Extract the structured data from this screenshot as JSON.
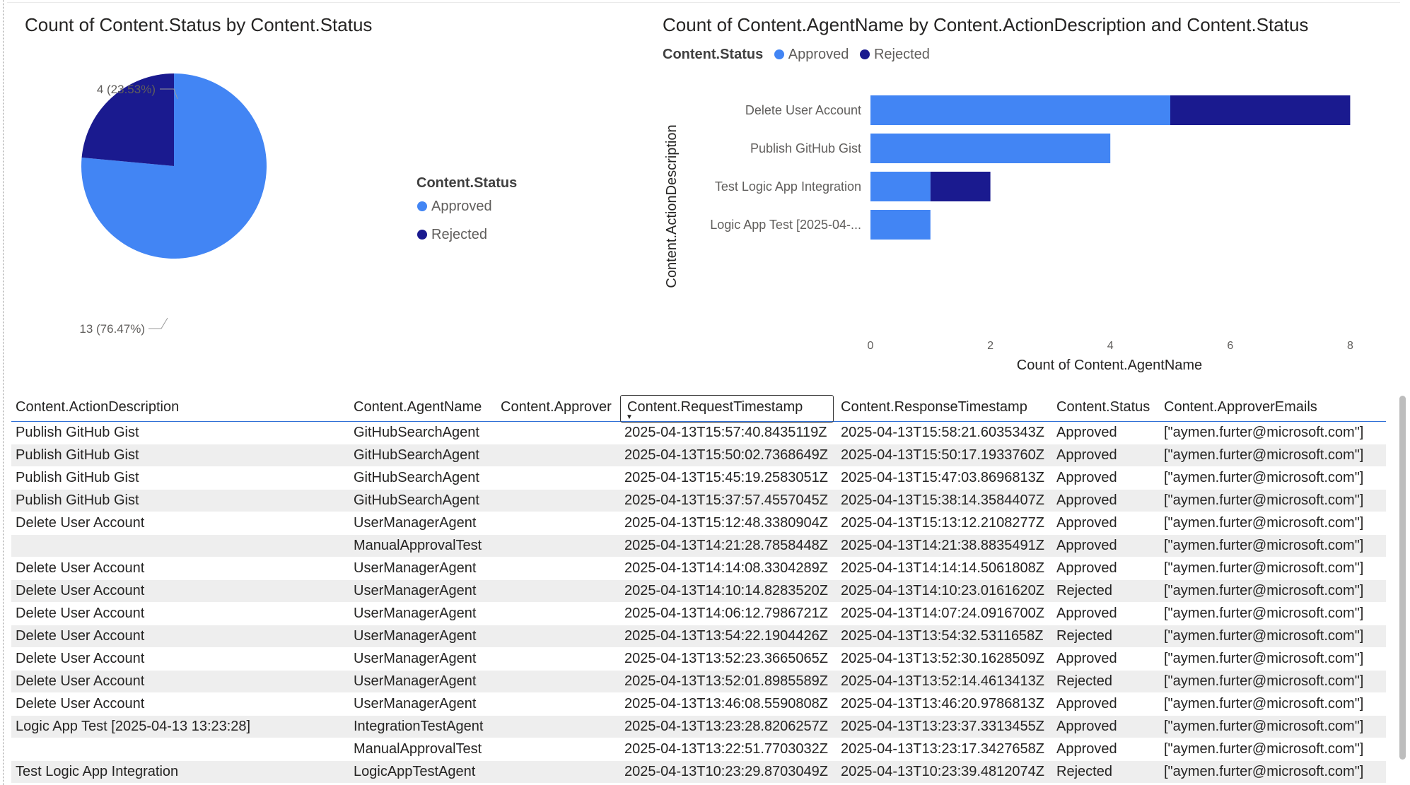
{
  "pie_visual": {
    "title": "Count of Content.Status by Content.Status",
    "legend_title": "Content.Status",
    "legend": [
      {
        "label": "Approved",
        "color": "#4285f4"
      },
      {
        "label": "Rejected",
        "color": "#1a1a8f"
      }
    ],
    "labels": {
      "rejected": "4 (23.53%)",
      "approved": "13 (76.47%)"
    }
  },
  "bar_visual": {
    "title": "Count of Content.AgentName by Content.ActionDescription and Content.Status",
    "legend_title": "Content.Status",
    "legend": [
      {
        "label": "Approved",
        "color": "#4285f4"
      },
      {
        "label": "Rejected",
        "color": "#1a1a8f"
      }
    ],
    "y_axis_title": "Content.ActionDescription",
    "x_axis_title": "Count of Content.AgentName"
  },
  "chart_data": [
    {
      "type": "pie",
      "title": "Count of Content.Status by Content.Status",
      "categories": [
        "Approved",
        "Rejected"
      ],
      "values": [
        13,
        4
      ],
      "labels": [
        "13 (76.47%)",
        "4 (23.53%)"
      ],
      "colors": [
        "#4285f4",
        "#1a1a8f"
      ],
      "legend": "right"
    },
    {
      "type": "bar",
      "orientation": "horizontal",
      "stacked": true,
      "title": "Count of Content.AgentName by Content.ActionDescription and Content.Status",
      "categories": [
        "Delete User Account",
        "Publish GitHub Gist",
        "Test Logic App Integration",
        "Logic App Test [2025-04-..."
      ],
      "series": [
        {
          "name": "Approved",
          "values": [
            5,
            4,
            1,
            1
          ],
          "color": "#4285f4"
        },
        {
          "name": "Rejected",
          "values": [
            3,
            0,
            1,
            0
          ],
          "color": "#1a1a8f"
        }
      ],
      "xlabel": "Count of Content.AgentName",
      "ylabel": "Content.ActionDescription",
      "xlim": [
        0,
        8
      ],
      "xticks": [
        0,
        2,
        4,
        6,
        8
      ],
      "legend": "top-left"
    }
  ],
  "table": {
    "columns": [
      "Content.ActionDescription",
      "Content.AgentName",
      "Content.Approver",
      "Content.RequestTimestamp",
      "Content.ResponseTimestamp",
      "Content.Status",
      "Content.ApproverEmails"
    ],
    "rows": [
      [
        "Publish GitHub Gist",
        "GitHubSearchAgent",
        "",
        "2025-04-13T15:57:40.8435119Z",
        "2025-04-13T15:58:21.6035343Z",
        "Approved",
        "[\"aymen.furter@microsoft.com\"]"
      ],
      [
        "Publish GitHub Gist",
        "GitHubSearchAgent",
        "",
        "2025-04-13T15:50:02.7368649Z",
        "2025-04-13T15:50:17.1933760Z",
        "Approved",
        "[\"aymen.furter@microsoft.com\"]"
      ],
      [
        "Publish GitHub Gist",
        "GitHubSearchAgent",
        "",
        "2025-04-13T15:45:19.2583051Z",
        "2025-04-13T15:47:03.8696813Z",
        "Approved",
        "[\"aymen.furter@microsoft.com\"]"
      ],
      [
        "Publish GitHub Gist",
        "GitHubSearchAgent",
        "",
        "2025-04-13T15:37:57.4557045Z",
        "2025-04-13T15:38:14.3584407Z",
        "Approved",
        "[\"aymen.furter@microsoft.com\"]"
      ],
      [
        "Delete User Account",
        "UserManagerAgent",
        "",
        "2025-04-13T15:12:48.3380904Z",
        "2025-04-13T15:13:12.2108277Z",
        "Approved",
        "[\"aymen.furter@microsoft.com\"]"
      ],
      [
        "",
        "ManualApprovalTest",
        "",
        "2025-04-13T14:21:28.7858448Z",
        "2025-04-13T14:21:38.8835491Z",
        "Approved",
        "[\"aymen.furter@microsoft.com\"]"
      ],
      [
        "Delete User Account",
        "UserManagerAgent",
        "",
        "2025-04-13T14:14:08.3304289Z",
        "2025-04-13T14:14:14.5061808Z",
        "Approved",
        "[\"aymen.furter@microsoft.com\"]"
      ],
      [
        "Delete User Account",
        "UserManagerAgent",
        "",
        "2025-04-13T14:10:14.8283520Z",
        "2025-04-13T14:10:23.0161620Z",
        "Rejected",
        "[\"aymen.furter@microsoft.com\"]"
      ],
      [
        "Delete User Account",
        "UserManagerAgent",
        "",
        "2025-04-13T14:06:12.7986721Z",
        "2025-04-13T14:07:24.0916700Z",
        "Approved",
        "[\"aymen.furter@microsoft.com\"]"
      ],
      [
        "Delete User Account",
        "UserManagerAgent",
        "",
        "2025-04-13T13:54:22.1904426Z",
        "2025-04-13T13:54:32.5311658Z",
        "Rejected",
        "[\"aymen.furter@microsoft.com\"]"
      ],
      [
        "Delete User Account",
        "UserManagerAgent",
        "",
        "2025-04-13T13:52:23.3665065Z",
        "2025-04-13T13:52:30.1628509Z",
        "Approved",
        "[\"aymen.furter@microsoft.com\"]"
      ],
      [
        "Delete User Account",
        "UserManagerAgent",
        "",
        "2025-04-13T13:52:01.8985589Z",
        "2025-04-13T13:52:14.4613413Z",
        "Rejected",
        "[\"aymen.furter@microsoft.com\"]"
      ],
      [
        "Delete User Account",
        "UserManagerAgent",
        "",
        "2025-04-13T13:46:08.5590808Z",
        "2025-04-13T13:46:20.9786813Z",
        "Approved",
        "[\"aymen.furter@microsoft.com\"]"
      ],
      [
        "Logic App Test [2025-04-13 13:23:28]",
        "IntegrationTestAgent",
        "",
        "2025-04-13T13:23:28.8206257Z",
        "2025-04-13T13:23:37.3313455Z",
        "Approved",
        "[\"aymen.furter@microsoft.com\"]"
      ],
      [
        "",
        "ManualApprovalTest",
        "",
        "2025-04-13T13:22:51.7703032Z",
        "2025-04-13T13:23:17.3427658Z",
        "Approved",
        "[\"aymen.furter@microsoft.com\"]"
      ],
      [
        "Test Logic App Integration",
        "LogicAppTestAgent",
        "",
        "2025-04-13T10:23:29.8703049Z",
        "2025-04-13T10:23:39.4812074Z",
        "Rejected",
        "[\"aymen.furter@microsoft.com\"]"
      ]
    ],
    "sorted_column": "Content.RequestTimestamp",
    "sort_direction": "descending"
  }
}
